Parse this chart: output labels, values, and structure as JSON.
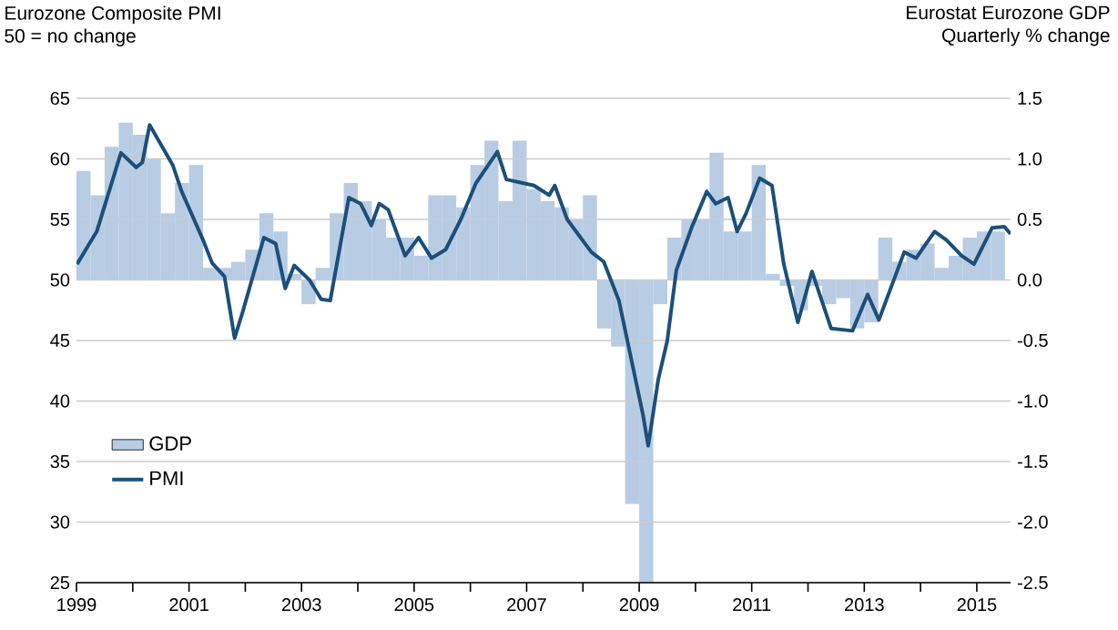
{
  "chart_data": {
    "type": "line",
    "ylabel": "Eurozone Composite PMI",
    "y2label": "Eurostat Eurozone GDP",
    "annotations": [
      "50 = no change",
      "Quarterly % change"
    ],
    "xlim": [
      1999,
      2015.6
    ],
    "xticks": [
      1999,
      {
        "value": 2000,
        "label": null
      },
      2001,
      {
        "value": 2002,
        "label": null
      },
      2003,
      {
        "value": 2004,
        "label": null
      },
      2005,
      {
        "value": 2006,
        "label": null
      },
      2007,
      {
        "value": 2008,
        "label": null
      },
      2009,
      {
        "value": 2010,
        "label": null
      },
      2011,
      {
        "value": 2012,
        "label": null
      },
      2013,
      {
        "value": 2014,
        "label": null
      },
      2015
    ],
    "ylim": [
      25,
      65
    ],
    "yticks": [
      25,
      30,
      35,
      40,
      45,
      50,
      55,
      60,
      65
    ],
    "y2lim": [
      -2.5,
      1.5
    ],
    "y2ticks": [
      -2.5,
      {
        "value": -2,
        "label": "-2.0"
      },
      -1.5,
      {
        "value": -1,
        "label": "-1.0"
      },
      -0.5,
      {
        "value": 0,
        "label": "0.0"
      },
      0.5,
      {
        "value": 1,
        "label": "1.0"
      },
      1.5
    ],
    "grid": "y",
    "legend": "bottom left",
    "series": [
      {
        "name": "GDP",
        "type": "bar",
        "axis": "y2",
        "color": "#b8cce4",
        "x": [
          1999.125,
          1999.375,
          1999.625,
          1999.875,
          2000.125,
          2000.375,
          2000.625,
          2000.875,
          2001.125,
          2001.375,
          2001.625,
          2001.875,
          2002.125,
          2002.375,
          2002.625,
          2002.875,
          2003.125,
          2003.375,
          2003.625,
          2003.875,
          2004.125,
          2004.375,
          2004.625,
          2004.875,
          2005.125,
          2005.375,
          2005.625,
          2005.875,
          2006.125,
          2006.375,
          2006.625,
          2006.875,
          2007.125,
          2007.375,
          2007.625,
          2007.875,
          2008.125,
          2008.375,
          2008.625,
          2008.875,
          2009.125,
          2009.375,
          2009.625,
          2009.875,
          2010.125,
          2010.375,
          2010.625,
          2010.875,
          2011.125,
          2011.375,
          2011.625,
          2011.875,
          2012.125,
          2012.375,
          2012.625,
          2012.875,
          2013.125,
          2013.375,
          2013.625,
          2013.875,
          2014.125,
          2014.375,
          2014.625,
          2014.875,
          2015.125,
          2015.375
        ],
        "values": [
          0.9,
          0.7,
          1.1,
          1.3,
          1.2,
          1.0,
          0.55,
          0.8,
          0.95,
          0.1,
          0.1,
          0.15,
          0.25,
          0.55,
          0.4,
          0.05,
          -0.2,
          0.1,
          0.55,
          0.8,
          0.65,
          0.5,
          0.35,
          0.35,
          0.2,
          0.7,
          0.7,
          0.6,
          0.95,
          1.15,
          0.65,
          1.15,
          0.75,
          0.65,
          0.6,
          0.5,
          0.7,
          -0.4,
          -0.55,
          -1.85,
          -2.5,
          -0.2,
          0.35,
          0.5,
          0.5,
          1.05,
          0.4,
          0.4,
          0.95,
          0.05,
          -0.05,
          -0.25,
          -0.05,
          -0.2,
          -0.15,
          -0.4,
          -0.35,
          0.35,
          0.15,
          0.25,
          0.3,
          0.1,
          0.2,
          0.35,
          0.4,
          0.4
        ]
      },
      {
        "name": "PMI",
        "color": "#1c4f7a",
        "x": [
          1999.01,
          1999.36,
          1999.79,
          2000.06,
          2000.17,
          2000.3,
          2000.71,
          2000.87,
          2001.25,
          2001.41,
          2001.63,
          2001.81,
          2001.95,
          2002.33,
          2002.54,
          2002.71,
          2002.87,
          2003.14,
          2003.35,
          2003.51,
          2003.84,
          2004.05,
          2004.24,
          2004.38,
          2004.54,
          2004.84,
          2005.08,
          2005.31,
          2005.56,
          2005.83,
          2006.1,
          2006.48,
          2006.64,
          2007.13,
          2007.4,
          2007.5,
          2007.72,
          2007.99,
          2008.15,
          2008.37,
          2008.64,
          2009.07,
          2009.16,
          2009.34,
          2009.5,
          2009.66,
          2009.93,
          2010.2,
          2010.36,
          2010.58,
          2010.74,
          2010.9,
          2011.14,
          2011.36,
          2011.57,
          2011.82,
          2012.07,
          2012.41,
          2012.79,
          2013.06,
          2013.26,
          2013.71,
          2013.92,
          2014.25,
          2014.46,
          2014.73,
          2014.95,
          2015.27,
          2015.49,
          2015.6
        ],
        "values": [
          51.3,
          54,
          60.5,
          59.3,
          59.7,
          62.8,
          59.5,
          57.3,
          53.3,
          51.4,
          50.3,
          45.2,
          47.3,
          53.5,
          53,
          49.3,
          51.2,
          50,
          48.4,
          48.3,
          56.8,
          56.3,
          54.5,
          56.3,
          55.8,
          52,
          53.5,
          51.8,
          52.5,
          55,
          58,
          60.6,
          58.3,
          57.8,
          57,
          57.8,
          55,
          53.3,
          52.3,
          51.5,
          48.3,
          38.8,
          36.3,
          41.8,
          45,
          50.8,
          54.3,
          57.3,
          56.3,
          56.8,
          54,
          55.5,
          58.4,
          57.8,
          51.3,
          46.5,
          50.7,
          46,
          45.8,
          48.8,
          46.7,
          52.3,
          51.8,
          54,
          53.3,
          52,
          51.3,
          54.3,
          54.4,
          53.8
        ]
      }
    ]
  }
}
